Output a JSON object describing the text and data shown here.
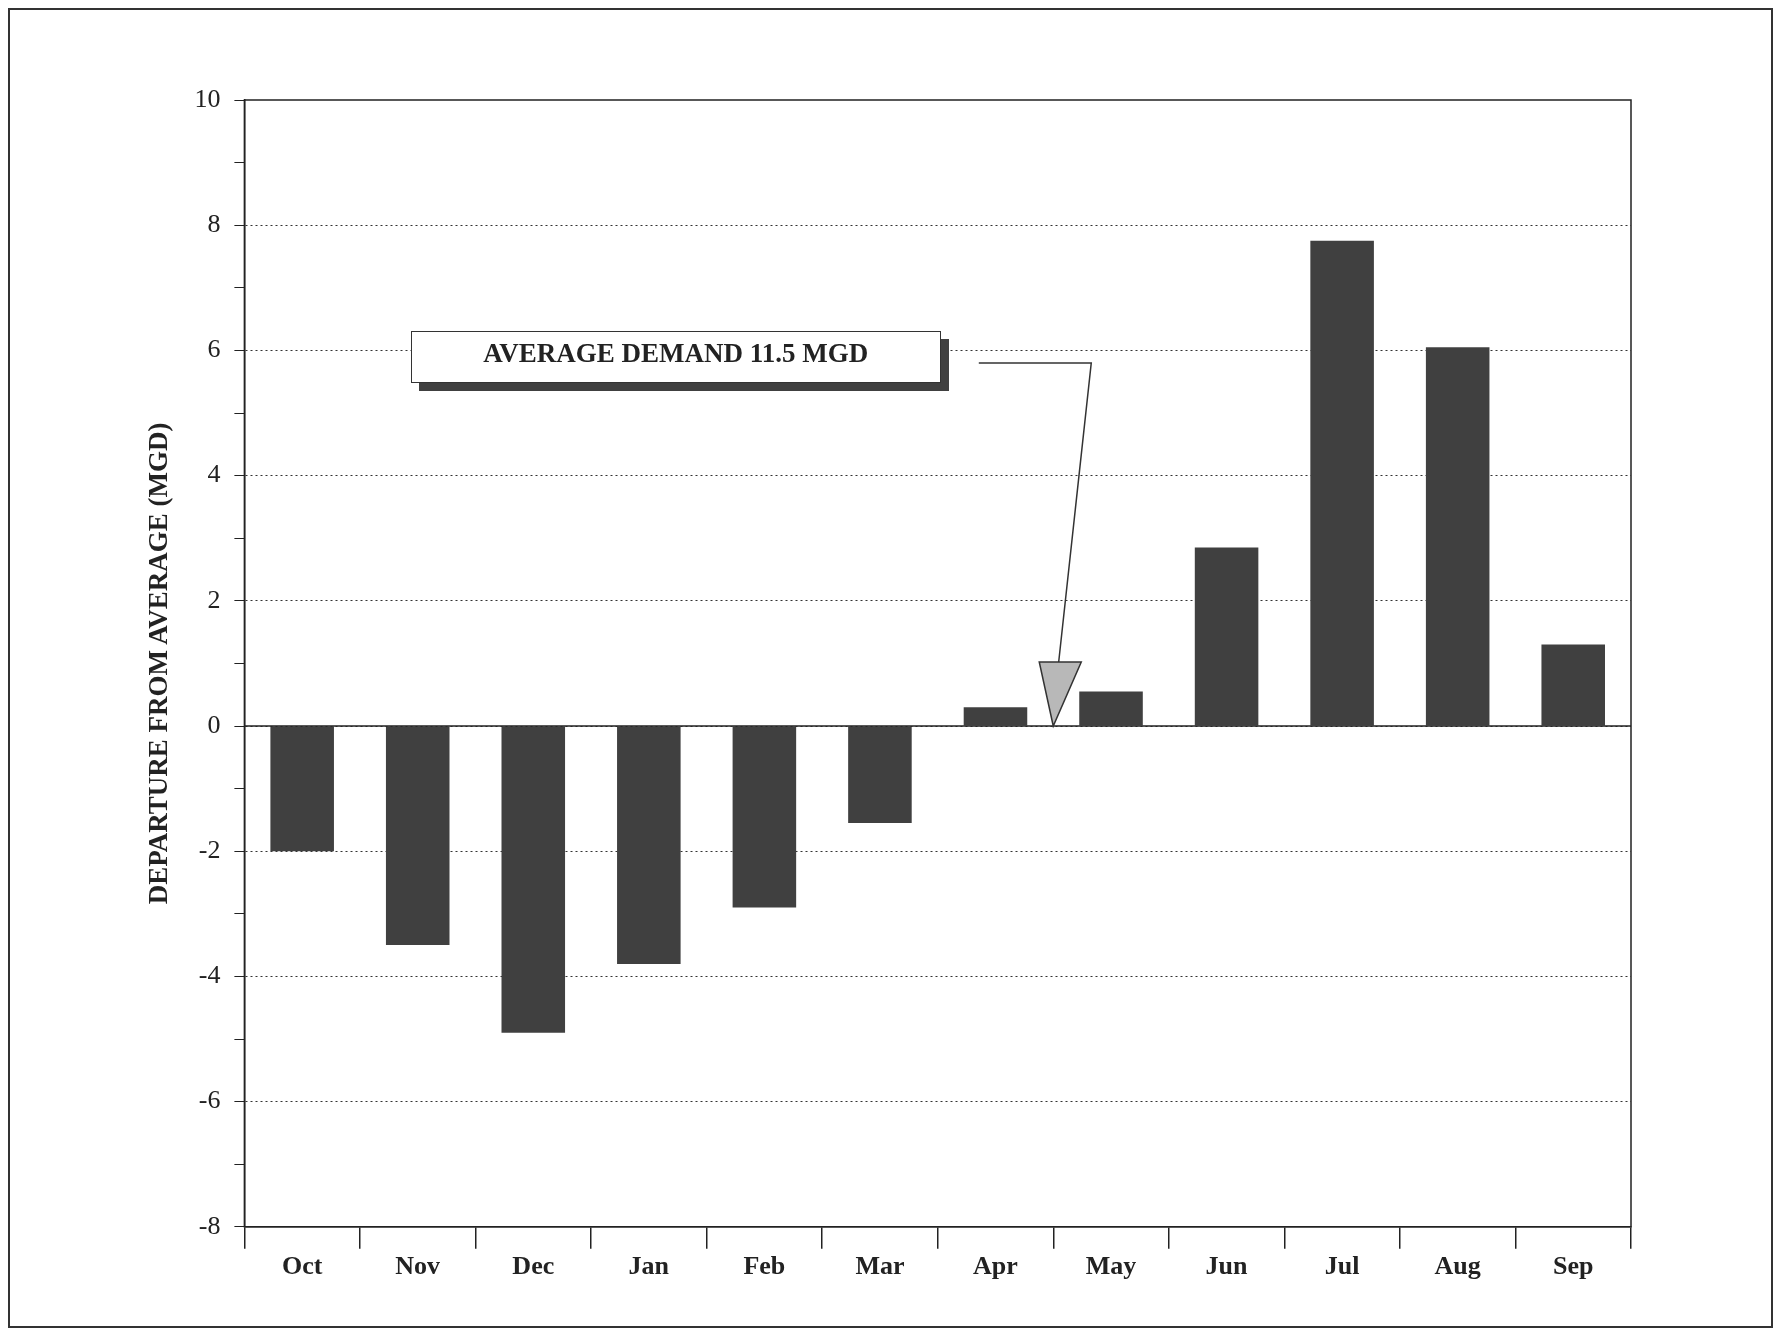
{
  "chart_data": {
    "type": "bar",
    "ylabel": "DEPARTURE FROM AVERAGE (MGD)",
    "categories": [
      "Oct",
      "Nov",
      "Dec",
      "Jan",
      "Feb",
      "Mar",
      "Apr",
      "May",
      "Jun",
      "Jul",
      "Aug",
      "Sep"
    ],
    "values": [
      -2.0,
      -3.5,
      -4.9,
      -3.8,
      -2.9,
      -1.55,
      0.3,
      0.55,
      2.85,
      7.75,
      6.05,
      1.3
    ],
    "color": "#404040",
    "ylim": [
      -8,
      10
    ],
    "yticks": [
      -8,
      {
        "value": -7,
        "label": null
      },
      -6,
      {
        "value": -5,
        "label": null
      },
      -4,
      {
        "value": -3,
        "label": null
      },
      -2,
      {
        "value": -1,
        "label": null
      },
      0,
      {
        "value": 1,
        "label": null
      },
      2,
      {
        "value": 3,
        "label": null
      },
      4,
      {
        "value": 5,
        "label": null
      },
      6,
      {
        "value": 7,
        "label": null
      },
      8,
      {
        "value": 9,
        "label": null
      },
      10
    ],
    "grid": "y",
    "legend": false,
    "annotations": [
      "AVERAGE DEMAND 11.5 MGD"
    ]
  }
}
